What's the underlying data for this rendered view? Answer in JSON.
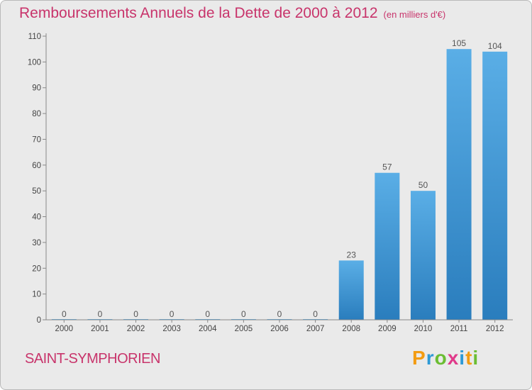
{
  "title": "Remboursements Annuels de la Dette de 2000 à 2012",
  "unit": "(en milliers d'€)",
  "place": "SAINT-SYMPHORIEN",
  "logo": {
    "letters": [
      "P",
      "r",
      "o",
      "x",
      "i",
      "t",
      "i"
    ],
    "colors": [
      "#f39c12",
      "#2e9ad6",
      "#6bbd33",
      "#e03a8a",
      "#2e9ad6",
      "#f39c12",
      "#6bbd33"
    ]
  },
  "chart_data": {
    "type": "bar",
    "categories": [
      "2000",
      "2001",
      "2002",
      "2003",
      "2004",
      "2005",
      "2006",
      "2007",
      "2008",
      "2009",
      "2010",
      "2011",
      "2012"
    ],
    "values": [
      0,
      0,
      0,
      0,
      0,
      0,
      0,
      0,
      23,
      57,
      50,
      105,
      104
    ],
    "data_labels": [
      "0",
      "0",
      "0",
      "0",
      "0",
      "0",
      "0",
      "0",
      "23",
      "57",
      "50",
      "105",
      "104"
    ],
    "yticks": [
      "0",
      "10",
      "20",
      "30",
      "40",
      "50",
      "60",
      "70",
      "80",
      "90",
      "100",
      "110"
    ],
    "ylim": [
      0,
      110
    ],
    "grid": false,
    "colors": {
      "bar_light": "#5aaee6",
      "bar_dark": "#2a7dbd",
      "label": "#555555",
      "axis": "#888888"
    }
  }
}
